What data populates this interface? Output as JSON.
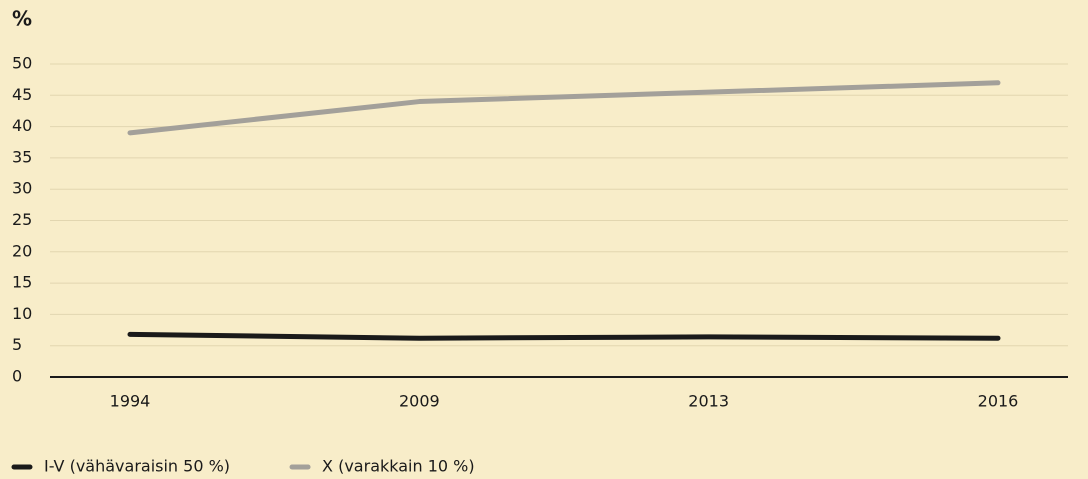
{
  "chart_data": {
    "type": "line",
    "y_axis_label": "%",
    "categories": [
      "1994",
      "2009",
      "2013",
      "2016"
    ],
    "series": [
      {
        "name": "I-V (vähävaraisin 50 %)",
        "color": "#1a1a1a",
        "values": [
          6.8,
          6.2,
          6.4,
          6.2
        ]
      },
      {
        "name": "X (varakkain 10 %)",
        "color": "#a3a09a",
        "values": [
          39,
          44,
          45.5,
          47
        ]
      }
    ],
    "ylim": [
      0,
      50
    ],
    "yticks": [
      0,
      5,
      10,
      15,
      20,
      25,
      30,
      35,
      40,
      45,
      50
    ],
    "grid": true,
    "legend": "bottom-left"
  }
}
